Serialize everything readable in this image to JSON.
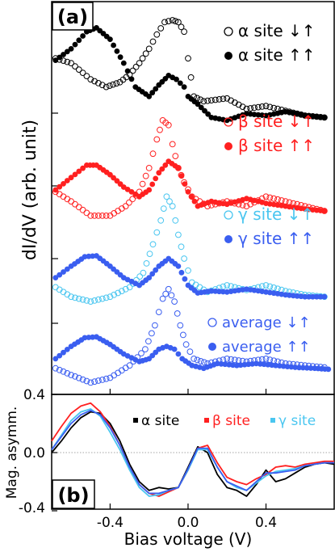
{
  "chart_data": [
    {
      "type": "scatter",
      "panel_label": "(a)",
      "xlabel": "",
      "ylabel": "dI/dV (arb. unit)",
      "xlim": [
        -0.7,
        0.75
      ],
      "x_ticks": [
        -0.4,
        0.0,
        0.4
      ],
      "y_ticks": [],
      "grid": false,
      "legend": "right, beside each curve pair",
      "series": [
        {
          "group": "alpha",
          "label": "α site ↓↑",
          "marker": "open-circle",
          "color": "#000000",
          "offset": 2.6,
          "x": [
            -0.68,
            -0.6,
            -0.5,
            -0.42,
            -0.35,
            -0.3,
            -0.25,
            -0.2,
            -0.16,
            -0.12,
            -0.08,
            -0.05,
            -0.02,
            0.0,
            0.03,
            0.08,
            0.2,
            0.3,
            0.4,
            0.5,
            0.6,
            0.7
          ],
          "y": [
            0.5,
            0.45,
            0.28,
            0.2,
            0.25,
            0.33,
            0.45,
            0.6,
            0.75,
            0.88,
            0.9,
            0.88,
            0.78,
            0.5,
            0.1,
            0.05,
            0.08,
            -0.03,
            0.0,
            -0.05,
            -0.1,
            -0.12
          ]
        },
        {
          "group": "alpha",
          "label": "α site ↑↑",
          "marker": "filled-circle",
          "color": "#000000",
          "offset": 2.6,
          "x": [
            -0.68,
            -0.6,
            -0.52,
            -0.47,
            -0.4,
            -0.33,
            -0.27,
            -0.2,
            -0.15,
            -0.1,
            -0.06,
            -0.02,
            0.0,
            0.05,
            0.12,
            0.2,
            0.3,
            0.4,
            0.5,
            0.6,
            0.7
          ],
          "y": [
            0.48,
            0.6,
            0.78,
            0.82,
            0.7,
            0.45,
            0.2,
            0.1,
            0.22,
            0.32,
            0.28,
            0.2,
            0.1,
            0.02,
            -0.12,
            -0.15,
            -0.08,
            -0.1,
            -0.06,
            -0.1,
            -0.12
          ]
        },
        {
          "group": "beta",
          "label": "β site ↓↑",
          "marker": "open-circle",
          "color": "#ff2020",
          "offset": 1.6,
          "x": [
            -0.68,
            -0.6,
            -0.5,
            -0.4,
            -0.32,
            -0.25,
            -0.2,
            -0.16,
            -0.13,
            -0.1,
            -0.08,
            -0.05,
            -0.02,
            0.02,
            0.1,
            0.2,
            0.3,
            0.4,
            0.5,
            0.6,
            0.7
          ],
          "y": [
            0.1,
            0.0,
            -0.15,
            -0.15,
            -0.05,
            0.1,
            0.35,
            0.65,
            0.85,
            0.8,
            0.6,
            0.35,
            0.2,
            0.05,
            -0.05,
            0.0,
            -0.05,
            0.05,
            0.0,
            -0.05,
            -0.1
          ]
        },
        {
          "group": "beta",
          "label": "β site ↑↑",
          "marker": "filled-circle",
          "color": "#ff2020",
          "offset": 1.6,
          "x": [
            -0.68,
            -0.6,
            -0.52,
            -0.47,
            -0.4,
            -0.33,
            -0.25,
            -0.2,
            -0.15,
            -0.1,
            -0.05,
            0.0,
            0.05,
            0.12,
            0.2,
            0.3,
            0.4,
            0.5,
            0.6,
            0.7
          ],
          "y": [
            0.12,
            0.25,
            0.38,
            0.38,
            0.28,
            0.15,
            0.05,
            0.12,
            0.3,
            0.42,
            0.35,
            0.1,
            -0.05,
            0.0,
            -0.03,
            0.03,
            -0.02,
            -0.05,
            -0.08,
            -0.1
          ]
        },
        {
          "group": "gamma",
          "label": "γ site ↓↑",
          "marker": "open-circle",
          "color": "#4ac6f0",
          "offset": 0.7,
          "x": [
            -0.68,
            -0.6,
            -0.5,
            -0.4,
            -0.3,
            -0.23,
            -0.18,
            -0.14,
            -0.11,
            -0.08,
            -0.05,
            -0.02,
            0.02,
            0.1,
            0.2,
            0.3,
            0.4,
            0.5,
            0.6,
            0.7
          ],
          "y": [
            0.0,
            -0.1,
            -0.15,
            -0.1,
            0.0,
            0.15,
            0.45,
            0.7,
            0.95,
            0.85,
            0.55,
            0.3,
            0.05,
            -0.05,
            0.02,
            -0.03,
            0.02,
            -0.04,
            -0.08,
            -0.1
          ]
        },
        {
          "group": "gamma",
          "label": "γ site ↑↑",
          "marker": "filled-circle",
          "color": "#3a5ef0",
          "offset": 0.7,
          "x": [
            -0.68,
            -0.6,
            -0.53,
            -0.47,
            -0.4,
            -0.33,
            -0.25,
            -0.2,
            -0.15,
            -0.1,
            -0.05,
            0.0,
            0.05,
            0.12,
            0.2,
            0.3,
            0.4,
            0.5,
            0.6,
            0.7
          ],
          "y": [
            0.1,
            0.22,
            0.32,
            0.33,
            0.22,
            0.1,
            0.02,
            0.1,
            0.22,
            0.3,
            0.22,
            0.02,
            -0.06,
            -0.04,
            -0.05,
            -0.02,
            -0.05,
            -0.08,
            -0.1,
            -0.1
          ]
        },
        {
          "group": "average",
          "label": "average ↓↑",
          "marker": "open-circle",
          "color": "#3a5ef0",
          "offset": 0.0,
          "x": [
            -0.68,
            -0.6,
            -0.5,
            -0.4,
            -0.3,
            -0.22,
            -0.17,
            -0.13,
            -0.1,
            -0.07,
            -0.04,
            -0.01,
            0.03,
            0.1,
            0.2,
            0.3,
            0.4,
            0.5,
            0.6,
            0.7
          ],
          "y": [
            -0.15,
            -0.22,
            -0.3,
            -0.25,
            -0.12,
            0.05,
            0.3,
            0.58,
            0.68,
            0.55,
            0.3,
            0.1,
            -0.05,
            -0.1,
            -0.05,
            -0.08,
            -0.05,
            -0.1,
            -0.12,
            -0.14
          ]
        },
        {
          "group": "average",
          "label": "average ↑↑",
          "marker": "filled-circle",
          "color": "#3a5ef0",
          "offset": 0.0,
          "x": [
            -0.68,
            -0.6,
            -0.53,
            -0.47,
            -0.4,
            -0.33,
            -0.25,
            -0.2,
            -0.15,
            -0.11,
            -0.07,
            -0.03,
            0.02,
            0.08,
            0.15,
            0.25,
            0.35,
            0.45,
            0.55,
            0.65,
            0.72
          ],
          "y": [
            -0.05,
            0.08,
            0.17,
            0.18,
            0.1,
            0.0,
            -0.08,
            -0.05,
            0.05,
            0.08,
            0.05,
            -0.05,
            -0.12,
            -0.15,
            -0.1,
            -0.12,
            -0.1,
            -0.12,
            -0.14,
            -0.15,
            -0.16
          ]
        }
      ]
    },
    {
      "type": "line",
      "panel_label": "(b)",
      "xlabel": "Bias voltage (V)",
      "ylabel": "Mag. asymm.",
      "xlim": [
        -0.7,
        0.75
      ],
      "ylim": [
        -0.4,
        0.4
      ],
      "x_ticks": [
        -0.4,
        0.0,
        0.4
      ],
      "y_ticks": [
        0.4,
        0.0,
        -0.4
      ],
      "y_tick_labels": [
        "0.4",
        "0.0",
        "-0.4"
      ],
      "x_tick_labels": [
        "-0.4",
        "0.0",
        "0.4"
      ],
      "zero_line": true,
      "grid": false,
      "legend": "top-right, single row",
      "series": [
        {
          "name": "α site",
          "color": "#000000",
          "x": [
            -0.7,
            -0.65,
            -0.6,
            -0.55,
            -0.5,
            -0.45,
            -0.4,
            -0.35,
            -0.3,
            -0.25,
            -0.2,
            -0.15,
            -0.1,
            -0.05,
            0.0,
            0.05,
            0.1,
            0.15,
            0.2,
            0.25,
            0.3,
            0.35,
            0.4,
            0.45,
            0.5,
            0.55,
            0.6,
            0.65,
            0.7,
            0.75
          ],
          "y": [
            0.0,
            0.08,
            0.17,
            0.24,
            0.28,
            0.27,
            0.2,
            0.08,
            -0.08,
            -0.2,
            -0.26,
            -0.24,
            -0.25,
            -0.24,
            -0.1,
            0.04,
            0.0,
            -0.15,
            -0.24,
            -0.26,
            -0.3,
            -0.22,
            -0.12,
            -0.2,
            -0.18,
            -0.14,
            -0.1,
            -0.08,
            -0.07,
            -0.08
          ]
        },
        {
          "name": "β site",
          "color": "#ff2020",
          "x": [
            -0.7,
            -0.65,
            -0.6,
            -0.55,
            -0.5,
            -0.45,
            -0.4,
            -0.35,
            -0.3,
            -0.25,
            -0.2,
            -0.15,
            -0.1,
            -0.05,
            0.0,
            0.05,
            0.1,
            0.15,
            0.2,
            0.25,
            0.3,
            0.35,
            0.4,
            0.45,
            0.5,
            0.55,
            0.6,
            0.65,
            0.7,
            0.75
          ],
          "y": [
            0.08,
            0.18,
            0.27,
            0.32,
            0.34,
            0.28,
            0.18,
            0.05,
            -0.1,
            -0.22,
            -0.28,
            -0.3,
            -0.27,
            -0.24,
            -0.12,
            0.03,
            0.05,
            -0.07,
            -0.17,
            -0.2,
            -0.22,
            -0.18,
            -0.15,
            -0.1,
            -0.09,
            -0.1,
            -0.08,
            -0.07,
            -0.06,
            -0.06
          ]
        },
        {
          "name": "γ site",
          "color": "#4ac6f0",
          "x": [
            -0.7,
            -0.65,
            -0.6,
            -0.55,
            -0.5,
            -0.45,
            -0.4,
            -0.35,
            -0.3,
            -0.25,
            -0.2,
            -0.15,
            -0.1,
            -0.05,
            0.0,
            0.05,
            0.1,
            0.15,
            0.2,
            0.25,
            0.3,
            0.35,
            0.4,
            0.45,
            0.5,
            0.55,
            0.6,
            0.65,
            0.7,
            0.75
          ],
          "y": [
            0.02,
            0.12,
            0.22,
            0.28,
            0.3,
            0.25,
            0.14,
            0.02,
            -0.12,
            -0.24,
            -0.3,
            -0.29,
            -0.26,
            -0.24,
            -0.12,
            0.02,
            0.02,
            -0.1,
            -0.2,
            -0.24,
            -0.26,
            -0.21,
            -0.16,
            -0.13,
            -0.12,
            -0.11,
            -0.09,
            -0.08,
            -0.07,
            -0.07
          ]
        },
        {
          "name": "",
          "color": "#3a5ef0",
          "x": [
            -0.7,
            -0.65,
            -0.6,
            -0.55,
            -0.5,
            -0.45,
            -0.4,
            -0.35,
            -0.3,
            -0.25,
            -0.2,
            -0.15,
            -0.1,
            -0.05,
            0.0,
            0.05,
            0.1,
            0.15,
            0.2,
            0.25,
            0.3,
            0.35,
            0.4,
            0.45,
            0.5,
            0.55,
            0.6,
            0.65,
            0.7,
            0.75
          ],
          "y": [
            0.02,
            0.11,
            0.2,
            0.26,
            0.29,
            0.26,
            0.17,
            0.05,
            -0.1,
            -0.22,
            -0.28,
            -0.28,
            -0.26,
            -0.24,
            -0.11,
            0.03,
            0.03,
            -0.1,
            -0.2,
            -0.23,
            -0.26,
            -0.2,
            -0.14,
            -0.14,
            -0.13,
            -0.12,
            -0.09,
            -0.08,
            -0.07,
            -0.07
          ]
        }
      ]
    }
  ]
}
